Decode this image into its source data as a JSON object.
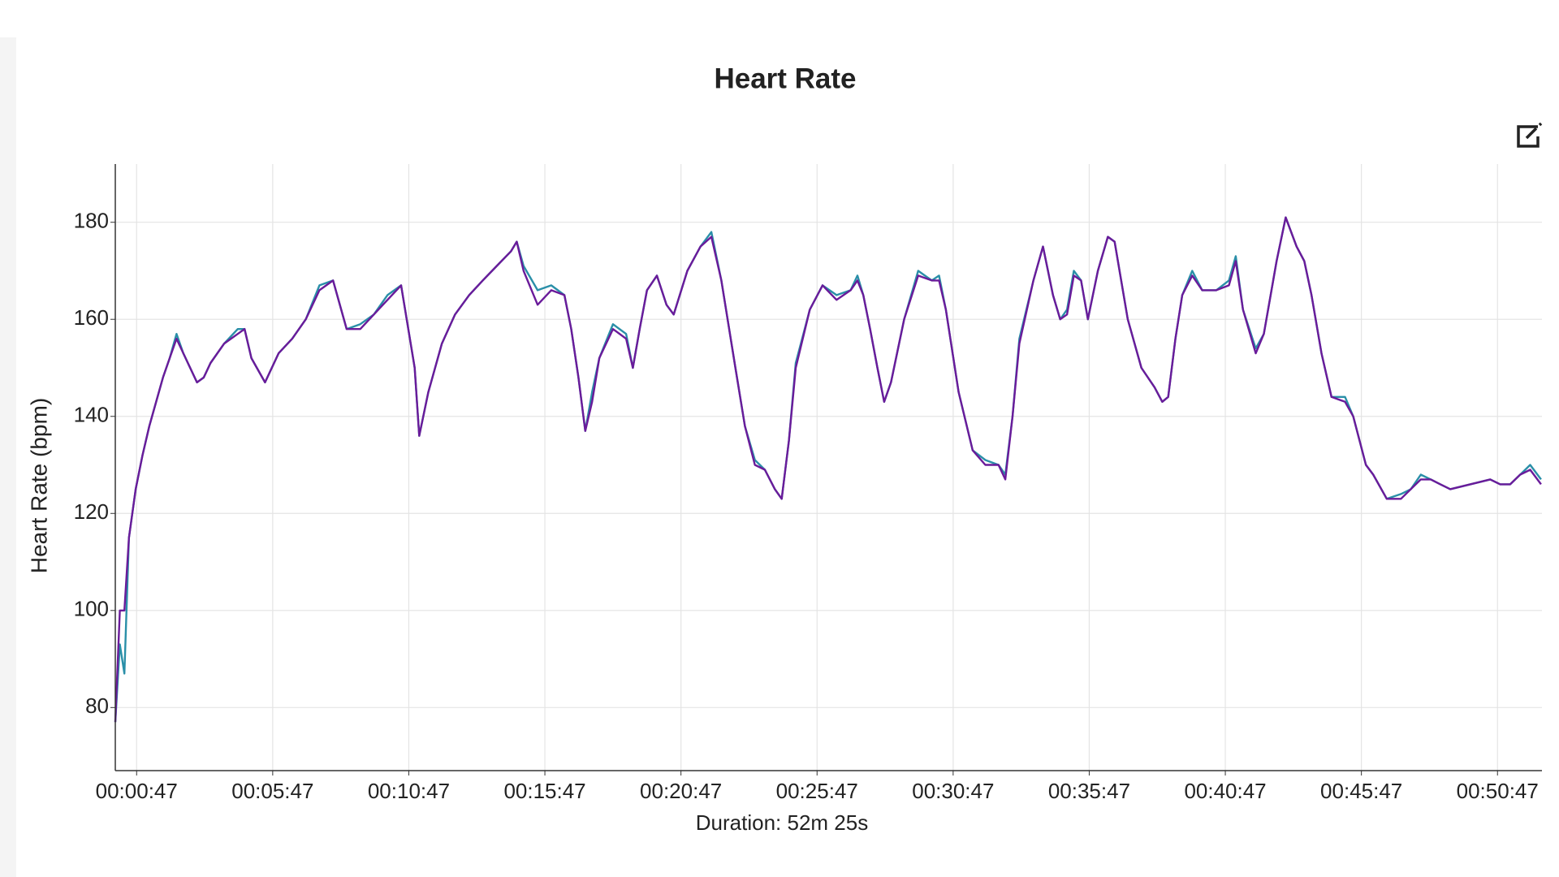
{
  "chart_data": {
    "type": "line",
    "title": "Heart Rate",
    "x_label": "Duration: 52m 25s",
    "y_label": "Heart Rate (bpm)",
    "x": [
      0,
      10,
      20,
      30,
      45,
      60,
      75,
      90,
      105,
      120,
      135,
      150,
      165,
      180,
      195,
      210,
      240,
      270,
      285,
      300,
      330,
      360,
      390,
      420,
      450,
      480,
      510,
      540,
      570,
      600,
      630,
      660,
      670,
      690,
      720,
      749,
      780,
      810,
      841,
      872,
      885,
      900,
      931,
      961,
      990,
      1005,
      1021,
      1036,
      1051,
      1067,
      1097,
      1126,
      1141,
      1156,
      1172,
      1194,
      1215,
      1231,
      1261,
      1290,
      1314,
      1336,
      1367,
      1388,
      1410,
      1432,
      1454,
      1469,
      1485,
      1500,
      1531,
      1559,
      1590,
      1621,
      1636,
      1649,
      1664,
      1680,
      1695,
      1710,
      1739,
      1770,
      1800,
      1816,
      1831,
      1859,
      1890,
      1918,
      1947,
      1962,
      1978,
      1993,
      2024,
      2045,
      2067,
      2083,
      2098,
      2113,
      2129,
      2144,
      2166,
      2188,
      2203,
      2232,
      2262,
      2291,
      2308,
      2321,
      2337,
      2352,
      2374,
      2396,
      2427,
      2455,
      2470,
      2486,
      2514,
      2532,
      2560,
      2580,
      2604,
      2621,
      2637,
      2659,
      2681,
      2711,
      2729,
      2757,
      2773,
      2803,
      2834,
      2856,
      2878,
      2900,
      2921,
      2943,
      2987,
      3031,
      3053,
      3075,
      3097,
      3119,
      3143
    ],
    "series": [
      {
        "color": "#2a8fa8",
        "values": [
          77,
          93,
          87,
          115,
          125,
          132,
          138,
          143,
          148,
          152,
          157,
          153,
          150,
          147,
          148,
          151,
          155,
          158,
          158,
          152,
          147,
          153,
          156,
          160,
          167,
          168,
          158,
          159,
          161,
          165,
          167,
          150,
          136,
          145,
          155,
          161,
          165,
          168,
          171,
          174,
          176,
          171,
          166,
          167,
          165,
          158,
          148,
          137,
          145,
          152,
          159,
          157,
          150,
          158,
          166,
          169,
          163,
          161,
          170,
          175,
          178,
          168,
          150,
          138,
          131,
          129,
          125,
          123,
          135,
          151,
          162,
          167,
          165,
          166,
          169,
          165,
          158,
          150,
          143,
          147,
          160,
          170,
          168,
          169,
          162,
          145,
          133,
          131,
          130,
          128,
          140,
          156,
          168,
          175,
          165,
          160,
          162,
          170,
          168,
          160,
          170,
          177,
          176,
          160,
          150,
          146,
          143,
          144,
          156,
          165,
          170,
          166,
          166,
          168,
          173,
          162,
          154,
          157,
          172,
          181,
          175,
          172,
          165,
          153,
          144,
          144,
          140,
          130,
          128,
          123,
          124,
          125,
          128,
          127,
          126,
          125,
          126,
          127,
          126,
          126,
          128,
          130,
          127
        ]
      },
      {
        "color": "#6a1b9a",
        "values": [
          77,
          100,
          100,
          115,
          125,
          132,
          138,
          143,
          148,
          152,
          156,
          153,
          150,
          147,
          148,
          151,
          155,
          157,
          158,
          152,
          147,
          153,
          156,
          160,
          166,
          168,
          158,
          158,
          161,
          164,
          167,
          150,
          136,
          145,
          155,
          161,
          165,
          168,
          171,
          174,
          176,
          170,
          163,
          166,
          165,
          158,
          148,
          137,
          143,
          152,
          158,
          156,
          150,
          158,
          166,
          169,
          163,
          161,
          170,
          175,
          177,
          168,
          150,
          138,
          130,
          129,
          125,
          123,
          135,
          150,
          162,
          167,
          164,
          166,
          168,
          165,
          158,
          150,
          143,
          147,
          160,
          169,
          168,
          168,
          162,
          145,
          133,
          130,
          130,
          127,
          140,
          155,
          168,
          175,
          165,
          160,
          161,
          169,
          168,
          160,
          170,
          177,
          176,
          160,
          150,
          146,
          143,
          144,
          156,
          165,
          169,
          166,
          166,
          167,
          172,
          162,
          153,
          157,
          172,
          181,
          175,
          172,
          165,
          153,
          144,
          143,
          140,
          130,
          128,
          123,
          123,
          125,
          127,
          127,
          126,
          125,
          126,
          127,
          126,
          126,
          128,
          129,
          126
        ]
      }
    ],
    "xlim": [
      0,
      3145
    ],
    "ylim": [
      67,
      192
    ],
    "xticks": [
      {
        "value": 47,
        "label": "00:00:47"
      },
      {
        "value": 347,
        "label": "00:05:47"
      },
      {
        "value": 647,
        "label": "00:10:47"
      },
      {
        "value": 947,
        "label": "00:15:47"
      },
      {
        "value": 1247,
        "label": "00:20:47"
      },
      {
        "value": 1547,
        "label": "00:25:47"
      },
      {
        "value": 1847,
        "label": "00:30:47"
      },
      {
        "value": 2147,
        "label": "00:35:47"
      },
      {
        "value": 2447,
        "label": "00:40:47"
      },
      {
        "value": 2747,
        "label": "00:45:47"
      },
      {
        "value": 3047,
        "label": "00:50:47"
      }
    ],
    "yticks": [
      80,
      100,
      120,
      140,
      160,
      180
    ],
    "grid": true
  }
}
